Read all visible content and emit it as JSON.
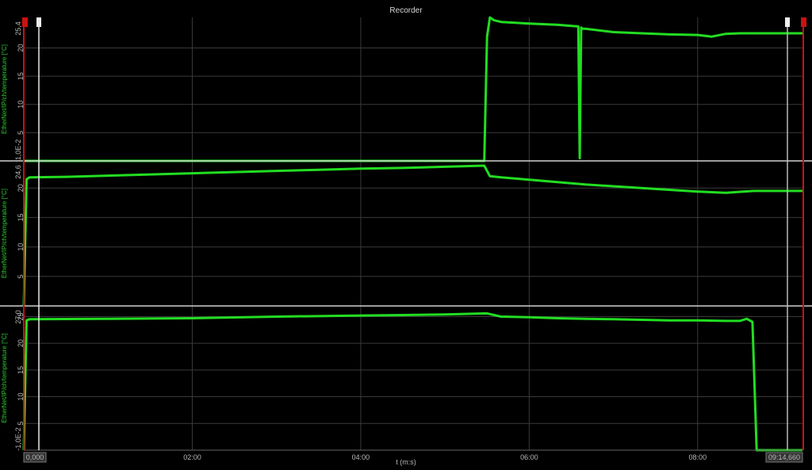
{
  "window": {
    "title": "Recorder"
  },
  "chart_data": {
    "type": "line",
    "xlabel": "t (m:s)",
    "x_start_label": "0,000",
    "x_end_label": "09:14,660",
    "x_ticks": [
      "02:00",
      "04:00",
      "06:00",
      "08:00"
    ],
    "x_tick_seconds": [
      120,
      240,
      360,
      480
    ],
    "x_range_seconds": [
      0,
      554.66
    ],
    "colors": {
      "series": "#22dd22",
      "grid": "#3a3a3a",
      "divider": "#d0d0d0",
      "marker_left": "#e8e8e8",
      "marker_right": "#cc1111"
    },
    "panels": [
      {
        "ylabel": "EtherNet/IP/ch/temperature [°C]",
        "ymax_label": "25,4",
        "ymin_label": "1,0E-2",
        "yticks": [
          "20",
          "15",
          "10",
          "5"
        ],
        "ylim": [
          0.01,
          25.4
        ],
        "series": {
          "x": [
            0,
            328,
            330,
            332,
            335,
            340,
            360,
            380,
            395,
            396,
            397,
            398,
            400,
            420,
            440,
            460,
            480,
            490,
            500,
            510,
            520,
            554.66
          ],
          "y": [
            0.01,
            0.01,
            22,
            25.4,
            24.9,
            24.6,
            24.3,
            24.1,
            23.8,
            0.5,
            23.6,
            23.4,
            23.4,
            22.8,
            22.6,
            22.4,
            22.3,
            22.0,
            22.5,
            22.6,
            22.6,
            22.6
          ]
        }
      },
      {
        "ylabel": "EtherNet/IP/ch/temperature [°C]",
        "ymax_label": "24,6",
        "ymin_label": "",
        "yticks": [
          "20",
          "15",
          "10",
          "5"
        ],
        "ylim": [
          0,
          24.6
        ],
        "series": {
          "x": [
            0,
            2,
            4,
            30,
            60,
            90,
            120,
            150,
            180,
            210,
            240,
            270,
            300,
            328,
            332,
            340,
            360,
            380,
            400,
            420,
            440,
            460,
            480,
            500,
            520,
            554.66
          ],
          "y": [
            0,
            21.5,
            21.8,
            21.9,
            22.1,
            22.3,
            22.5,
            22.7,
            22.9,
            23.1,
            23.3,
            23.4,
            23.6,
            23.8,
            22.0,
            21.8,
            21.4,
            21.0,
            20.6,
            20.3,
            20.0,
            19.7,
            19.4,
            19.2,
            19.5,
            19.5
          ]
        }
      },
      {
        "ylabel": "EtherNet/IP/ch/temperature [°C]",
        "ymax_label": "27,0",
        "ymin_label": "-1,0E-2",
        "yticks": [
          "25",
          "20",
          "15",
          "10",
          "5"
        ],
        "ylim": [
          -0.01,
          27.0
        ],
        "series": {
          "x": [
            0,
            2,
            4,
            60,
            120,
            180,
            240,
            300,
            330,
            340,
            360,
            380,
            400,
            420,
            440,
            460,
            480,
            500,
            510,
            515,
            519,
            522,
            554.66
          ],
          "y": [
            0,
            24.3,
            24.5,
            24.6,
            24.7,
            25.0,
            25.2,
            25.4,
            25.6,
            25.0,
            24.9,
            24.7,
            24.6,
            24.5,
            24.4,
            24.3,
            24.3,
            24.2,
            24.2,
            24.6,
            24.0,
            -0.01,
            -0.01
          ]
        }
      }
    ]
  }
}
